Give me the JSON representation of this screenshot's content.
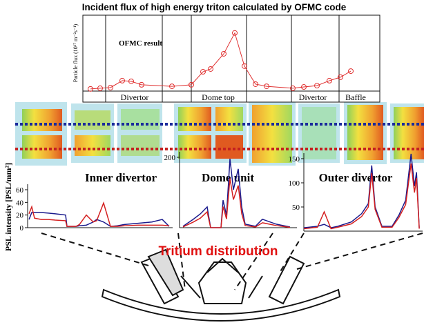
{
  "chart_data": [
    {
      "type": "line",
      "title": "Incident flux of high energy triton calculated by OFMC code",
      "ylabel": "Particle flux (10¹⁷ m⁻²s⁻¹)",
      "annotation": "OFMC result",
      "regions": [
        "Divertor",
        "Dome top",
        "Divertor",
        "Baffle"
      ],
      "x": [
        11,
        25,
        40,
        57,
        70,
        85,
        129,
        157,
        174,
        185,
        204,
        220,
        234,
        250,
        266,
        304,
        320,
        339,
        357,
        373,
        388
      ],
      "values": [
        0.1,
        0.13,
        0.16,
        0.48,
        0.45,
        0.29,
        0.22,
        0.29,
        0.89,
        1.02,
        1.72,
        2.68,
        1.15,
        0.32,
        0.22,
        0.13,
        0.19,
        0.25,
        0.48,
        0.64,
        0.92
      ],
      "color": "#e03030",
      "xlim": [
        0,
        430
      ],
      "ylim": [
        0,
        3.5
      ]
    },
    {
      "type": "line",
      "ylabel": "PSL intensity [PSL/mm²]",
      "label": "Inner divertor",
      "xlim": [
        0,
        210
      ],
      "ylim": [
        0,
        60
      ],
      "yticks": [
        0,
        20,
        40,
        60
      ],
      "x": [
        2,
        6,
        10,
        20,
        30,
        40,
        55,
        57,
        70,
        75,
        85,
        95,
        100,
        110,
        120,
        130,
        140,
        160,
        180,
        195,
        205
      ],
      "series": [
        {
          "color": "#1a1a8c",
          "values": [
            13,
            24,
            24,
            24,
            23,
            22,
            20,
            2,
            2,
            3,
            4,
            9,
            13,
            9,
            2,
            3,
            5,
            7,
            9,
            13,
            2
          ]
        },
        {
          "color": "#d42020",
          "values": [
            22,
            33,
            15,
            13,
            13,
            12,
            11,
            2,
            2,
            5,
            20,
            9,
            11,
            39,
            2,
            2,
            3,
            4,
            4,
            4,
            3
          ]
        }
      ]
    },
    {
      "type": "line",
      "label": "Dome unit",
      "xlim": [
        0,
        170
      ],
      "ylim": [
        0,
        200
      ],
      "yticks": [
        200
      ],
      "x": [
        5,
        20,
        30,
        40,
        45,
        60,
        63,
        68,
        73,
        78,
        85,
        90,
        95,
        110,
        120,
        140,
        160
      ],
      "series": [
        {
          "color": "#1a1a8c",
          "values": [
            4,
            24,
            39,
            59,
            0,
            0,
            78,
            35,
            196,
            108,
            167,
            59,
            10,
            4,
            24,
            10,
            2
          ]
        },
        {
          "color": "#d42020",
          "values": [
            2,
            16,
            27,
            45,
            0,
            0,
            60,
            25,
            140,
            80,
            120,
            40,
            6,
            2,
            14,
            6,
            1
          ]
        }
      ]
    },
    {
      "type": "line",
      "label": "Outer divertor",
      "xlim": [
        0,
        175
      ],
      "ylim": [
        0,
        150
      ],
      "yticks": [
        50,
        100,
        150
      ],
      "x": [
        0,
        20,
        30,
        40,
        50,
        70,
        85,
        95,
        100,
        105,
        115,
        130,
        140,
        150,
        158,
        163,
        166,
        170
      ],
      "series": [
        {
          "color": "#1a1a8c",
          "values": [
            7,
            10,
            14,
            7,
            10,
            19,
            36,
            57,
            136,
            50,
            10,
            10,
            33,
            64,
            160,
            93,
            122,
            7
          ]
        },
        {
          "color": "#d42020",
          "values": [
            5,
            8,
            40,
            5,
            8,
            15,
            30,
            50,
            120,
            45,
            8,
            8,
            28,
            55,
            140,
            80,
            110,
            5
          ]
        }
      ]
    }
  ],
  "caption": "Tritium distribution"
}
